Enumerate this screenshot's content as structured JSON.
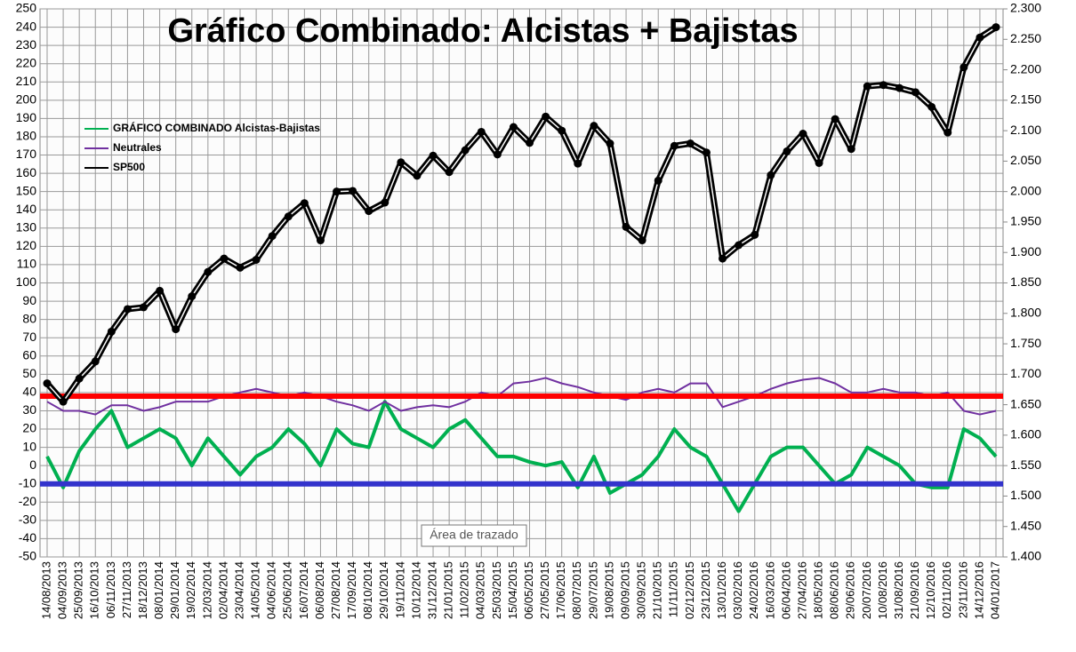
{
  "chart_data": {
    "type": "line",
    "title": "Gráfico Combinado: Alcistas + Bajistas",
    "tooltip": "Área de trazado",
    "categories": [
      "14/08/2013",
      "04/09/2013",
      "25/09/2013",
      "16/10/2013",
      "06/11/2013",
      "27/11/2013",
      "18/12/2013",
      "08/01/2014",
      "29/01/2014",
      "19/02/2014",
      "12/03/2014",
      "02/04/2014",
      "23/04/2014",
      "14/05/2014",
      "04/06/2014",
      "25/06/2014",
      "16/07/2014",
      "06/08/2014",
      "27/08/2014",
      "17/09/2014",
      "08/10/2014",
      "29/10/2014",
      "19/11/2014",
      "10/12/2014",
      "31/12/2014",
      "21/01/2015",
      "11/02/2015",
      "04/03/2015",
      "25/03/2015",
      "15/04/2015",
      "06/05/2015",
      "27/05/2015",
      "17/06/2015",
      "08/07/2015",
      "29/07/2015",
      "19/08/2015",
      "09/09/2015",
      "30/09/2015",
      "21/10/2015",
      "11/11/2015",
      "02/12/2015",
      "23/12/2015",
      "13/01/2016",
      "03/02/2016",
      "24/02/2016",
      "16/03/2016",
      "06/04/2016",
      "27/04/2016",
      "18/05/2016",
      "08/06/2016",
      "29/06/2016",
      "20/07/2016",
      "10/08/2016",
      "31/08/2016",
      "21/09/2016",
      "12/10/2016",
      "02/11/2016",
      "23/11/2016",
      "14/12/2016",
      "04/01/2017"
    ],
    "series": [
      {
        "name": "GRÁFICO COMBINADO Alcistas-Bajistas",
        "color": "#00b050",
        "axis": "y",
        "values": [
          5,
          -12,
          8,
          20,
          30,
          10,
          15,
          20,
          15,
          0,
          15,
          5,
          -5,
          5,
          10,
          20,
          12,
          0,
          20,
          12,
          10,
          35,
          20,
          15,
          10,
          20,
          25,
          15,
          5,
          5,
          2,
          0,
          2,
          -12,
          5,
          -15,
          -10,
          -5,
          5,
          20,
          10,
          5,
          -10,
          -25,
          -10,
          5,
          10,
          10,
          0,
          -10,
          -5,
          10,
          5,
          0,
          -10,
          -12,
          -12,
          20,
          15,
          5
        ]
      },
      {
        "name": "Neutrales",
        "color": "#7030a0",
        "axis": "y",
        "values": [
          35,
          30,
          30,
          28,
          33,
          33,
          30,
          32,
          35,
          35,
          35,
          38,
          40,
          42,
          40,
          38,
          40,
          38,
          35,
          33,
          30,
          35,
          30,
          32,
          33,
          32,
          35,
          40,
          38,
          45,
          46,
          48,
          45,
          43,
          40,
          38,
          36,
          40,
          42,
          40,
          45,
          45,
          32,
          35,
          38,
          42,
          45,
          47,
          48,
          45,
          40,
          40,
          42,
          40,
          40,
          38,
          40,
          30,
          28,
          30
        ]
      },
      {
        "name": "SP500",
        "color": "#000000",
        "axis": "y2",
        "values": [
          1685,
          1655,
          1693,
          1721,
          1770,
          1807,
          1810,
          1837,
          1774,
          1828,
          1868,
          1890,
          1875,
          1888,
          1927,
          1959,
          1981,
          1920,
          2000,
          2001,
          1968,
          1982,
          2048,
          2026,
          2059,
          2032,
          2068,
          2098,
          2061,
          2106,
          2080,
          2123,
          2100,
          2046,
          2108,
          2079,
          1942,
          1920,
          2018,
          2075,
          2079,
          2064,
          1890,
          1912,
          1929,
          2027,
          2066,
          2095,
          2047,
          2119,
          2070,
          2173,
          2175,
          2170,
          2163,
          2139,
          2097,
          2204,
          2253,
          2270
        ]
      }
    ],
    "hlines": [
      {
        "value": 38,
        "color": "#ff0000"
      },
      {
        "value": -10,
        "color": "#3333cc"
      }
    ],
    "ylim": [
      -50,
      250
    ],
    "yticks": [
      -50,
      -40,
      -30,
      -20,
      -10,
      0,
      10,
      20,
      30,
      40,
      50,
      60,
      70,
      80,
      90,
      100,
      110,
      120,
      130,
      140,
      150,
      160,
      170,
      180,
      190,
      200,
      210,
      220,
      230,
      240,
      250
    ],
    "y2lim": [
      1400,
      2300
    ],
    "y2ticks": [
      {
        "value": 1400,
        "label": "1.400"
      },
      {
        "value": 1450,
        "label": "1.450"
      },
      {
        "value": 1500,
        "label": "1.500"
      },
      {
        "value": 1550,
        "label": "1.550"
      },
      {
        "value": 1600,
        "label": "1.600"
      },
      {
        "value": 1650,
        "label": "1.650"
      },
      {
        "value": 1700,
        "label": "1.700"
      },
      {
        "value": 1750,
        "label": "1.750"
      },
      {
        "value": 1800,
        "label": "1.800"
      },
      {
        "value": 1850,
        "label": "1.850"
      },
      {
        "value": 1900,
        "label": "1.900"
      },
      {
        "value": 1950,
        "label": "1.950"
      },
      {
        "value": 2000,
        "label": "2.000"
      },
      {
        "value": 2050,
        "label": "2.050"
      },
      {
        "value": 2100,
        "label": "2.100"
      },
      {
        "value": 2150,
        "label": "2.150"
      },
      {
        "value": 2200,
        "label": "2.200"
      },
      {
        "value": 2250,
        "label": "2.250"
      },
      {
        "value": 2300,
        "label": "2.300"
      }
    ],
    "grid": true
  }
}
